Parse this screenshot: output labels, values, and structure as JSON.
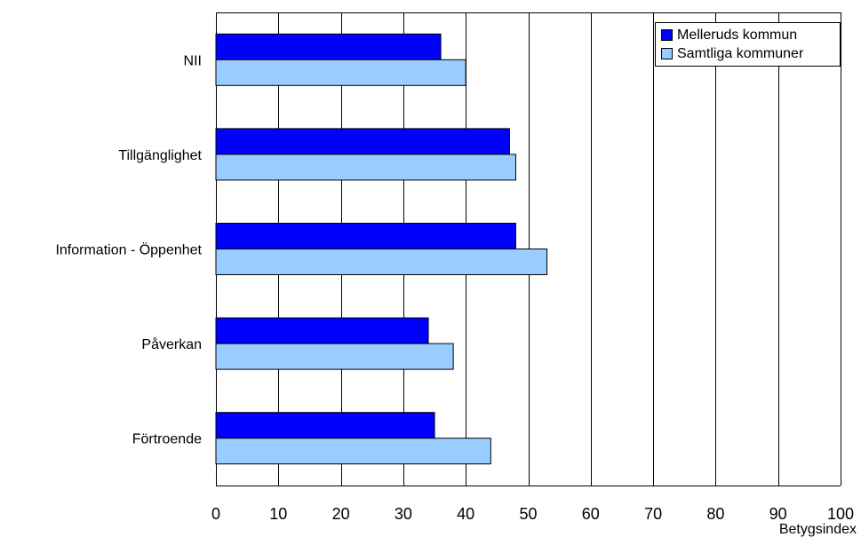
{
  "chart_data": {
    "type": "bar",
    "orientation": "horizontal",
    "categories": [
      "NII",
      "Tillgänglighet",
      "Information - Öppenhet",
      "Påverkan",
      "Förtroende"
    ],
    "series": [
      {
        "name": "Melleruds kommun",
        "values": [
          36,
          47,
          48,
          34,
          35
        ],
        "color": "#0000ff"
      },
      {
        "name": "Samtliga kommuner",
        "values": [
          40,
          48,
          53,
          38,
          44
        ],
        "color": "#99ccff"
      }
    ],
    "xlabel": "Betygsindex",
    "xlim": [
      0,
      100
    ],
    "xticks": [
      "0",
      "10",
      "20",
      "30",
      "40",
      "50",
      "60",
      "70",
      "80",
      "90",
      "100"
    ],
    "grid": "vertical",
    "legend": "top-right"
  }
}
